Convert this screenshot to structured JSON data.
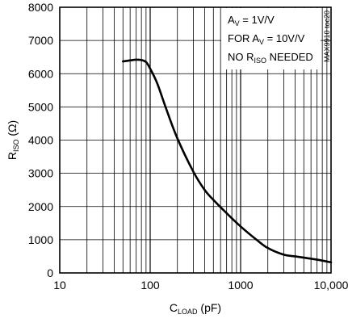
{
  "chart_data": {
    "type": "line",
    "title": "",
    "xlabel": {
      "main": "C",
      "sub": "LOAD",
      "rest": " (pF)"
    },
    "ylabel": {
      "main": "R",
      "sub": "ISO",
      "rest": " (Ω)"
    },
    "x_scale": "log",
    "xlim": [
      10,
      10000
    ],
    "ylim": [
      0,
      8000
    ],
    "x_ticks": [
      10,
      100,
      1000,
      10000
    ],
    "x_tick_labels": [
      "10",
      "100",
      "1000",
      "10,000"
    ],
    "y_ticks": [
      0,
      1000,
      2000,
      3000,
      4000,
      5000,
      6000,
      7000,
      8000
    ],
    "y_tick_labels": [
      "0",
      "1000",
      "2000",
      "3000",
      "4000",
      "5000",
      "6000",
      "7000",
      "8000"
    ],
    "grid": true,
    "series": [
      {
        "x": [
          50,
          60,
          70,
          80,
          90,
          100,
          120,
          150,
          200,
          300,
          400,
          500,
          700,
          1000,
          1500,
          2000,
          3000,
          4000,
          5000,
          7000,
          10000
        ],
        "y": [
          6370,
          6400,
          6420,
          6410,
          6350,
          6150,
          5700,
          4950,
          4050,
          3050,
          2500,
          2200,
          1800,
          1400,
          1000,
          750,
          550,
          500,
          460,
          400,
          320
        ]
      }
    ],
    "annotations": [
      {
        "main": "A",
        "sub": "V",
        "rest": " = 1V/V"
      },
      {
        "main": "FOR A",
        "sub": "V",
        "rest": " = 10V/V"
      },
      {
        "main": "NO R",
        "sub": "ISO",
        "rest": " NEEDED"
      }
    ],
    "code": "MAX9910 toc20"
  }
}
